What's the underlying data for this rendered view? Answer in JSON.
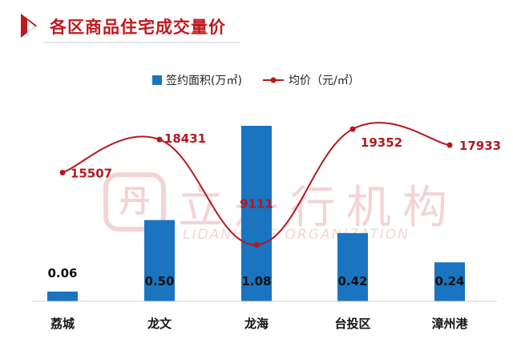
{
  "header": {
    "title": "各区商品住宅成交量价",
    "accent_color": "#c0191f",
    "icon": "chevron-right-icon"
  },
  "watermark": {
    "text_cn": "立丹行机构",
    "text_en": "LIDANHANG ORGANIZATION"
  },
  "chart_data": {
    "type": "bar",
    "categories": [
      "荔城",
      "龙文",
      "龙海",
      "台投区",
      "漳州港"
    ],
    "series": [
      {
        "name": "签约面积(万㎡)",
        "type": "bar",
        "color": "#1a74bf",
        "values": [
          0.06,
          0.5,
          1.08,
          0.42,
          0.24
        ],
        "labels": [
          "0.06",
          "0.50",
          "1.08",
          "0.42",
          "0.24"
        ]
      },
      {
        "name": "均价（元/㎡）",
        "type": "line",
        "color": "#b3191f",
        "values": [
          15507,
          18431,
          9111,
          19352,
          17933
        ],
        "labels": [
          "15507",
          "18431",
          "9111",
          "19352",
          "17933"
        ]
      }
    ],
    "legend_position": "top",
    "grid": false,
    "bar_axis_range": [
      0,
      1.2
    ],
    "line_axis_range": [
      0,
      26000
    ]
  }
}
